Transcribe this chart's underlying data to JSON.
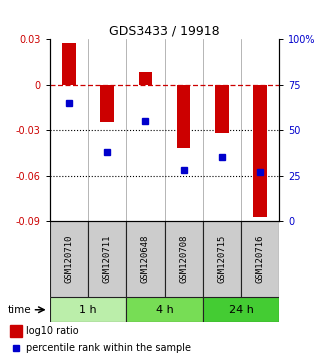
{
  "title": "GDS3433 / 19918",
  "samples": [
    "GSM120710",
    "GSM120711",
    "GSM120648",
    "GSM120708",
    "GSM120715",
    "GSM120716"
  ],
  "log10_ratio": [
    0.027,
    -0.025,
    0.008,
    -0.042,
    -0.032,
    -0.087
  ],
  "percentile_rank": [
    65,
    38,
    55,
    28,
    35,
    27
  ],
  "groups": [
    {
      "label": "1 h",
      "indices": [
        0,
        1
      ],
      "color": "#bbeeaa"
    },
    {
      "label": "4 h",
      "indices": [
        2,
        3
      ],
      "color": "#77dd55"
    },
    {
      "label": "24 h",
      "indices": [
        4,
        5
      ],
      "color": "#44cc33"
    }
  ],
  "bar_color": "#cc0000",
  "dot_color": "#0000cc",
  "left_ylim": [
    -0.09,
    0.03
  ],
  "left_yticks": [
    0.03,
    0,
    -0.03,
    -0.06,
    -0.09
  ],
  "left_ytick_labels": [
    "0.03",
    "0",
    "-0.03",
    "-0.06",
    "-0.09"
  ],
  "right_yticks": [
    0,
    25,
    50,
    75,
    100
  ],
  "right_ytick_labels": [
    "0",
    "25",
    "50",
    "75",
    "100%"
  ],
  "dotted_hlines": [
    -0.03,
    -0.06
  ],
  "background_color": "#ffffff",
  "sample_box_color": "#cccccc",
  "sample_box_edge": "#222222",
  "time_label": "time",
  "legend_bar_label": "log10 ratio",
  "legend_dot_label": "percentile rank within the sample",
  "bar_width": 0.35
}
